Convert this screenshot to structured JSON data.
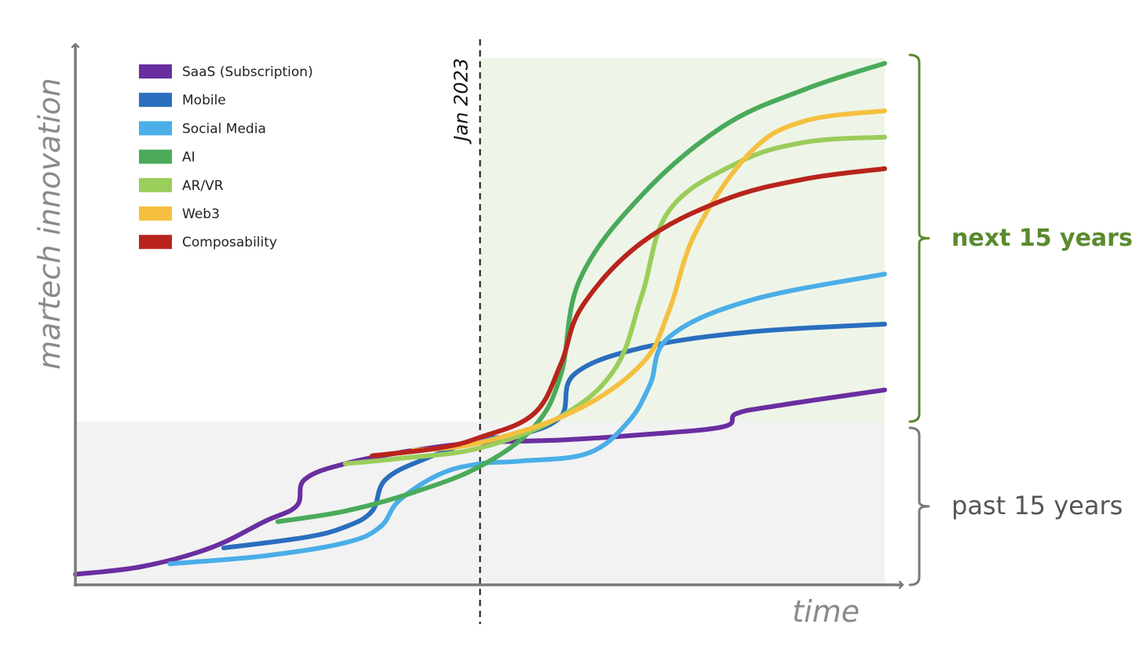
{
  "chart_data": {
    "type": "line",
    "title": "",
    "xlabel": "time",
    "ylabel": "martech innovation",
    "xlim": [
      0,
      30
    ],
    "ylim": [
      0,
      100
    ],
    "grid": false,
    "legend_position": "top-left",
    "marker": {
      "label": "Jan 2023",
      "x": 15
    },
    "regions": [
      {
        "label": "past 15 years",
        "y_from": 0,
        "y_to": 31,
        "color": "#f2f2f2",
        "text_color": "#555555"
      },
      {
        "label": "next 15 years",
        "y_from": 31,
        "y_to": 100,
        "color": "#eef5e8",
        "text_color": "#5a8a2e"
      }
    ],
    "series": [
      {
        "name": "SaaS (Subscription)",
        "color": "#6a2ea0",
        "points": [
          [
            0,
            2
          ],
          [
            2.5,
            3.5
          ],
          [
            5,
            7
          ],
          [
            7,
            12
          ],
          [
            8.2,
            15
          ],
          [
            8.5,
            20
          ],
          [
            10,
            23
          ],
          [
            12.5,
            25.5
          ],
          [
            15,
            27
          ],
          [
            18,
            27.5
          ],
          [
            21,
            28.5
          ],
          [
            24,
            30
          ],
          [
            24.5,
            32.5
          ],
          [
            26,
            34
          ],
          [
            30,
            37
          ]
        ]
      },
      {
        "name": "Mobile",
        "color": "#2a6ebe",
        "points": [
          [
            5.5,
            7
          ],
          [
            8.5,
            9
          ],
          [
            10,
            11
          ],
          [
            11,
            14
          ],
          [
            11.5,
            20
          ],
          [
            13,
            24
          ],
          [
            15,
            27.5
          ],
          [
            16.5,
            28.5
          ],
          [
            18,
            32
          ],
          [
            18.5,
            40
          ],
          [
            21,
            45
          ],
          [
            25,
            48
          ],
          [
            30,
            49.5
          ]
        ]
      },
      {
        "name": "Social Media",
        "color": "#4aaee8",
        "points": [
          [
            3.5,
            4
          ],
          [
            7,
            5.5
          ],
          [
            10,
            8
          ],
          [
            11.3,
            11
          ],
          [
            12,
            16
          ],
          [
            13.5,
            21
          ],
          [
            15,
            23
          ],
          [
            16.5,
            23.5
          ],
          [
            19,
            25
          ],
          [
            20.5,
            31
          ],
          [
            21.3,
            38
          ],
          [
            22,
            47
          ],
          [
            25,
            54
          ],
          [
            30,
            59
          ]
        ]
      },
      {
        "name": "AI",
        "color": "#4aaa5a",
        "points": [
          [
            7.5,
            12
          ],
          [
            10,
            14
          ],
          [
            12.5,
            17.5
          ],
          [
            15,
            22.5
          ],
          [
            17,
            30
          ],
          [
            18,
            40
          ],
          [
            18.7,
            58
          ],
          [
            21,
            74
          ],
          [
            24,
            87
          ],
          [
            27,
            94
          ],
          [
            30,
            99
          ]
        ]
      },
      {
        "name": "AR/VR",
        "color": "#9acd5a",
        "points": [
          [
            10,
            23
          ],
          [
            12,
            24
          ],
          [
            15,
            26
          ],
          [
            18,
            32
          ],
          [
            20,
            41
          ],
          [
            21,
            55
          ],
          [
            22,
            71
          ],
          [
            24.5,
            80
          ],
          [
            27,
            84
          ],
          [
            30,
            85
          ]
        ]
      },
      {
        "name": "Web3",
        "color": "#f5c040",
        "points": [
          [
            12.5,
            25.5
          ],
          [
            15,
            27
          ],
          [
            18.5,
            33
          ],
          [
            21,
            42
          ],
          [
            22,
            52
          ],
          [
            23,
            67
          ],
          [
            25,
            82
          ],
          [
            27,
            88
          ],
          [
            30,
            90
          ]
        ]
      },
      {
        "name": "Composability",
        "color": "#b8241c",
        "points": [
          [
            11,
            24.5
          ],
          [
            13.5,
            26
          ],
          [
            15,
            28
          ],
          [
            17,
            32.5
          ],
          [
            18,
            42
          ],
          [
            18.8,
            53
          ],
          [
            21,
            65
          ],
          [
            24,
            73
          ],
          [
            27,
            77
          ],
          [
            30,
            79
          ]
        ]
      }
    ]
  }
}
